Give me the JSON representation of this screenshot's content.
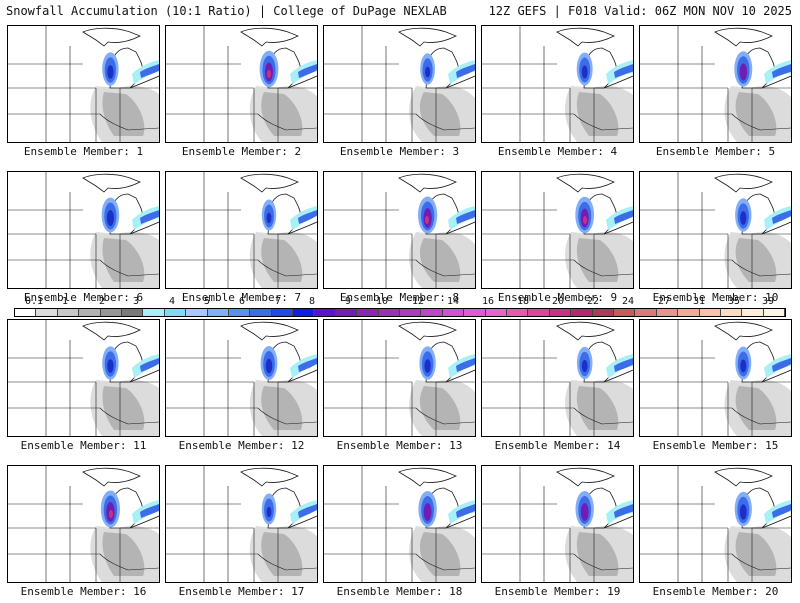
{
  "header": {
    "title_left": "Snowfall Accumulation (10:1 Ratio) | College of DuPage NEXLAB",
    "title_right": "12Z GEFS | F018 Valid: 06Z MON NOV 10 2025"
  },
  "members": [
    {
      "label": "Ensemble Member: 1",
      "intensity": 0.55,
      "east_band": 0.55
    },
    {
      "label": "Ensemble Member: 2",
      "intensity": 0.85,
      "east_band": 0.45
    },
    {
      "label": "Ensemble Member: 3",
      "intensity": 0.35,
      "east_band": 0.45
    },
    {
      "label": "Ensemble Member: 4",
      "intensity": 0.5,
      "east_band": 0.7
    },
    {
      "label": "Ensemble Member: 5",
      "intensity": 0.75,
      "east_band": 0.75
    },
    {
      "label": "Ensemble Member: 6",
      "intensity": 0.7,
      "east_band": 0.55
    },
    {
      "label": "Ensemble Member: 7",
      "intensity": 0.3,
      "east_band": 0.3
    },
    {
      "label": "Ensemble Member: 8",
      "intensity": 0.9,
      "east_band": 0.6
    },
    {
      "label": "Ensemble Member: 9",
      "intensity": 0.85,
      "east_band": 0.5
    },
    {
      "label": "Ensemble Member: 10",
      "intensity": 0.55,
      "east_band": 0.4
    },
    {
      "label": "Ensemble Member: 11",
      "intensity": 0.55,
      "east_band": 0.3
    },
    {
      "label": "Ensemble Member: 12",
      "intensity": 0.6,
      "east_band": 0.35
    },
    {
      "label": "Ensemble Member: 13",
      "intensity": 0.55,
      "east_band": 0.45
    },
    {
      "label": "Ensemble Member: 14",
      "intensity": 0.45,
      "east_band": 0.55
    },
    {
      "label": "Ensemble Member: 15",
      "intensity": 0.5,
      "east_band": 0.45
    },
    {
      "label": "Ensemble Member: 16",
      "intensity": 0.9,
      "east_band": 0.55
    },
    {
      "label": "Ensemble Member: 17",
      "intensity": 0.3,
      "east_band": 0.35
    },
    {
      "label": "Ensemble Member: 18",
      "intensity": 0.8,
      "east_band": 0.6
    },
    {
      "label": "Ensemble Member: 19",
      "intensity": 0.8,
      "east_band": 0.7
    },
    {
      "label": "Ensemble Member: 20",
      "intensity": 0.65,
      "east_band": 0.45
    }
  ],
  "colorbar": {
    "labels": [
      "0.1",
      "1",
      "2",
      "3",
      "4",
      "5",
      "6",
      "7",
      "8",
      "9",
      "10",
      "12",
      "14",
      "16",
      "18",
      "20",
      "22",
      "24",
      "27",
      "31",
      "35",
      "39"
    ],
    "colors": [
      "#ffffff",
      "#dcdcdc",
      "#c8c8c8",
      "#b0b0b0",
      "#969696",
      "#7a7a7a",
      "#a8f0f8",
      "#7fdcf0",
      "#a8c8ff",
      "#82aef8",
      "#5a8ef0",
      "#3c6ce8",
      "#2448e0",
      "#0c1ee0",
      "#5a14c8",
      "#6e1eb4",
      "#8228b4",
      "#9632b4",
      "#aa3cbe",
      "#be46c8",
      "#d250d2",
      "#e05ad2",
      "#e664c8",
      "#e65aaa",
      "#dc4696",
      "#c83282",
      "#b4286e",
      "#aa3c5a",
      "#c85a5a",
      "#dc7878",
      "#e6968c",
      "#f0aa96",
      "#f5c3aa",
      "#fadcc3",
      "#ffecd9",
      "#fff5e6"
    ]
  },
  "map_colors": {
    "border": "#1a1a1a",
    "lake_fill": "#ffffff"
  }
}
